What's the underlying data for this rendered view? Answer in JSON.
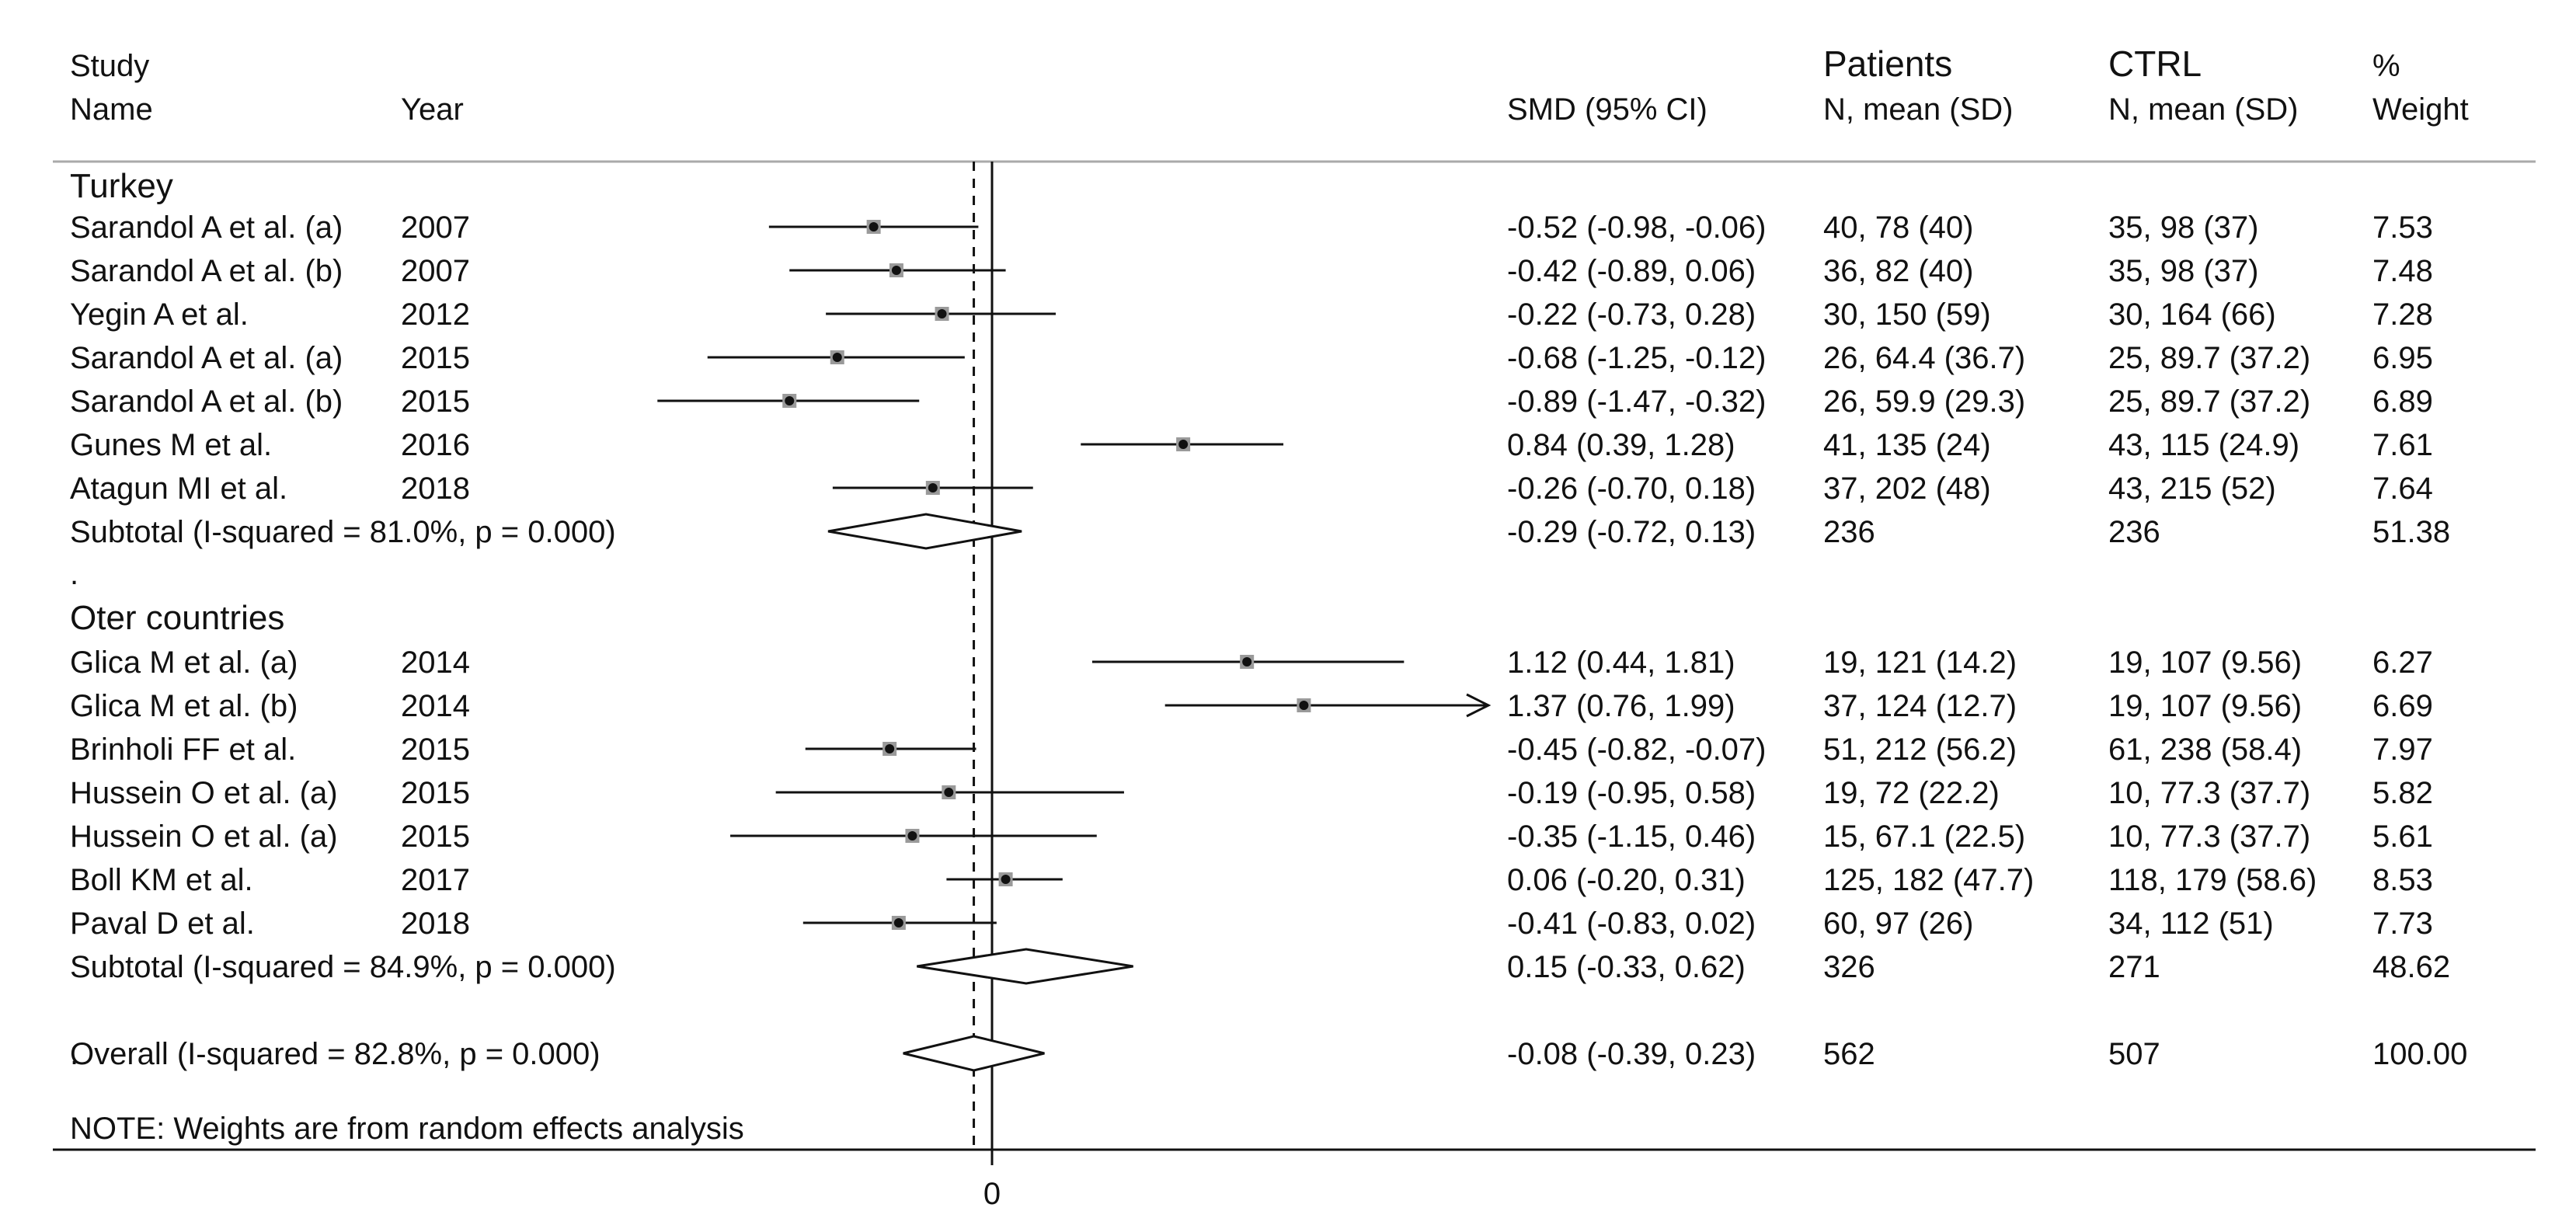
{
  "chart_data": {
    "type": "forest",
    "headers": {
      "study": "Study",
      "name": "Name",
      "year": "Year",
      "smd": "SMD (95% CI)",
      "patients": "Patients",
      "patients_sub": "N, mean (SD)",
      "ctrl": "CTRL",
      "ctrl_sub": "N, mean (SD)",
      "weight_pct": "%",
      "weight": "Weight"
    },
    "x_axis": {
      "ticks": [
        0
      ],
      "tick_labels": [
        "0"
      ],
      "overall_line": -0.08
    },
    "rows": [
      {
        "kind": "group",
        "label": "Turkey"
      },
      {
        "kind": "study",
        "name": "Sarandol A et al. (a)",
        "year": "2007",
        "smd": -0.52,
        "lo": -0.98,
        "hi": -0.06,
        "smd_text": "-0.52 (-0.98, -0.06)",
        "patients": "40, 78 (40)",
        "ctrl": "35, 98 (37)",
        "weight": "7.53"
      },
      {
        "kind": "study",
        "name": "Sarandol A et al. (b)",
        "year": "2007",
        "smd": -0.42,
        "lo": -0.89,
        "hi": 0.06,
        "smd_text": "-0.42 (-0.89, 0.06)",
        "patients": "36, 82 (40)",
        "ctrl": "35, 98 (37)",
        "weight": "7.48"
      },
      {
        "kind": "study",
        "name": "Yegin A et al.",
        "year": "2012",
        "smd": -0.22,
        "lo": -0.73,
        "hi": 0.28,
        "smd_text": "-0.22 (-0.73, 0.28)",
        "patients": "30, 150 (59)",
        "ctrl": "30, 164 (66)",
        "weight": "7.28"
      },
      {
        "kind": "study",
        "name": "Sarandol A et al. (a)",
        "year": "2015",
        "smd": -0.68,
        "lo": -1.25,
        "hi": -0.12,
        "smd_text": "-0.68 (-1.25, -0.12)",
        "patients": "26, 64.4 (36.7)",
        "ctrl": "25, 89.7 (37.2)",
        "weight": "6.95"
      },
      {
        "kind": "study",
        "name": "Sarandol A et al. (b)",
        "year": "2015",
        "smd": -0.89,
        "lo": -1.47,
        "hi": -0.32,
        "smd_text": "-0.89 (-1.47, -0.32)",
        "patients": "26, 59.9 (29.3)",
        "ctrl": "25, 89.7 (37.2)",
        "weight": "6.89"
      },
      {
        "kind": "study",
        "name": "Gunes M et al.",
        "year": "2016",
        "smd": 0.84,
        "lo": 0.39,
        "hi": 1.28,
        "smd_text": "0.84 (0.39, 1.28)",
        "patients": "41, 135 (24)",
        "ctrl": "43, 115 (24.9)",
        "weight": "7.61"
      },
      {
        "kind": "study",
        "name": "Atagun MI et al.",
        "year": "2018",
        "smd": -0.26,
        "lo": -0.7,
        "hi": 0.18,
        "smd_text": "-0.26 (-0.70, 0.18)",
        "patients": "37, 202 (48)",
        "ctrl": "43, 215 (52)",
        "weight": "7.64"
      },
      {
        "kind": "subtotal",
        "label": "Subtotal  (I-squared = 81.0%, p = 0.000)",
        "smd": -0.29,
        "lo": -0.72,
        "hi": 0.13,
        "smd_text": "-0.29 (-0.72, 0.13)",
        "patients": "236",
        "ctrl": "236",
        "weight": "51.38"
      },
      {
        "kind": "sep",
        "label": "."
      },
      {
        "kind": "group",
        "label": "Oter countries"
      },
      {
        "kind": "study",
        "name": "Glica M et al. (a)",
        "year": "2014",
        "smd": 1.12,
        "lo": 0.44,
        "hi": 1.81,
        "smd_text": "1.12 (0.44, 1.81)",
        "patients": "19, 121 (14.2)",
        "ctrl": "19, 107 (9.56)",
        "weight": "6.27"
      },
      {
        "kind": "study",
        "name": "Glica M et al. (b)",
        "year": "2014",
        "smd": 1.37,
        "lo": 0.76,
        "hi": 1.99,
        "smd_text": "1.37 (0.76, 1.99)",
        "patients": "37, 124 (12.7)",
        "ctrl": "19, 107 (9.56)",
        "weight": "6.69",
        "clipped": true
      },
      {
        "kind": "study",
        "name": "Brinholi FF et al.",
        "year": "2015",
        "smd": -0.45,
        "lo": -0.82,
        "hi": -0.07,
        "smd_text": "-0.45 (-0.82, -0.07)",
        "patients": "51, 212 (56.2)",
        "ctrl": "61, 238 (58.4)",
        "weight": "7.97"
      },
      {
        "kind": "study",
        "name": "Hussein O et al. (a)",
        "year": "2015",
        "smd": -0.19,
        "lo": -0.95,
        "hi": 0.58,
        "smd_text": "-0.19 (-0.95, 0.58)",
        "patients": "19, 72 (22.2)",
        "ctrl": "10, 77.3 (37.7)",
        "weight": "5.82"
      },
      {
        "kind": "study",
        "name": "Hussein O et al. (a)",
        "year": "2015",
        "smd": -0.35,
        "lo": -1.15,
        "hi": 0.46,
        "smd_text": "-0.35 (-1.15, 0.46)",
        "patients": "15, 67.1 (22.5)",
        "ctrl": "10, 77.3 (37.7)",
        "weight": "5.61"
      },
      {
        "kind": "study",
        "name": "Boll KM et al.",
        "year": "2017",
        "smd": 0.06,
        "lo": -0.2,
        "hi": 0.31,
        "smd_text": "0.06 (-0.20, 0.31)",
        "patients": "125, 182 (47.7)",
        "ctrl": "118, 179 (58.6)",
        "weight": "8.53"
      },
      {
        "kind": "study",
        "name": "Paval D et al.",
        "year": "2018",
        "smd": -0.41,
        "lo": -0.83,
        "hi": 0.02,
        "smd_text": "-0.41 (-0.83, 0.02)",
        "patients": "60, 97 (26)",
        "ctrl": "34, 112 (51)",
        "weight": "7.73"
      },
      {
        "kind": "subtotal",
        "label": "Subtotal  (I-squared = 84.9%, p = 0.000)",
        "smd": 0.15,
        "lo": -0.33,
        "hi": 0.62,
        "smd_text": "0.15 (-0.33, 0.62)",
        "patients": "326",
        "ctrl": "271",
        "weight": "48.62"
      },
      {
        "kind": "sep",
        "label": "."
      },
      {
        "kind": "overall",
        "label": "Overall  (I-squared = 82.8%, p = 0.000)",
        "smd": -0.08,
        "lo": -0.39,
        "hi": 0.23,
        "smd_text": "-0.08 (-0.39, 0.23)",
        "patients": "562",
        "ctrl": "507",
        "weight": "100.00"
      }
    ],
    "note": "NOTE: Weights are from random effects analysis",
    "colors": {
      "ink": "#111111",
      "rule": "#aaaaaa",
      "marker_shade": "#9a9a9a"
    }
  }
}
